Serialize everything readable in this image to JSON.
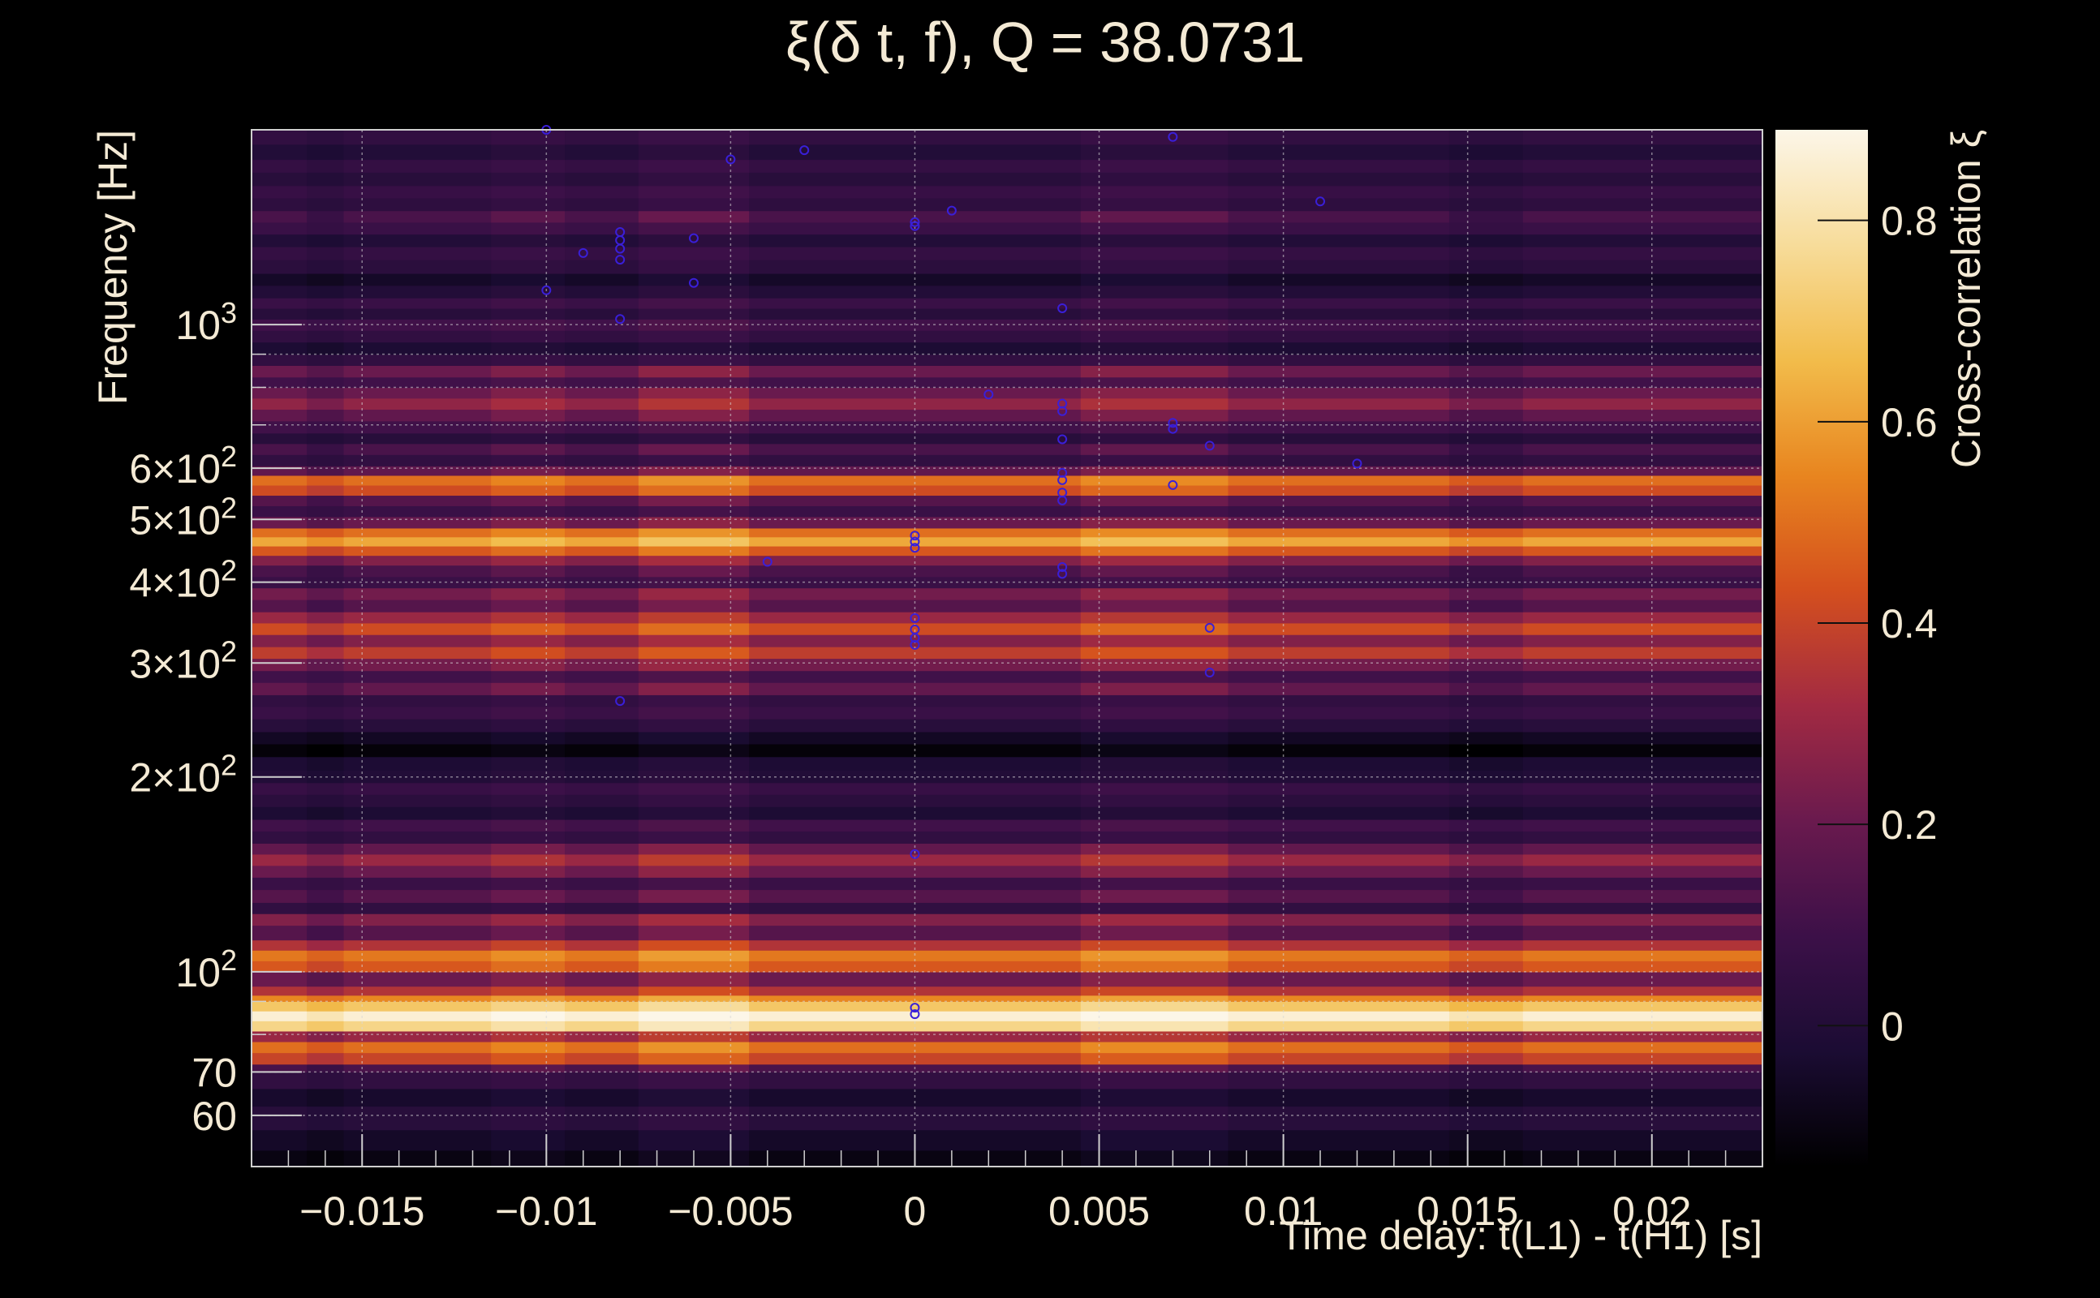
{
  "chart_data": {
    "type": "heatmap",
    "title": "ξ(δ t, f), Q = 38.0731",
    "xlabel": "Time delay: t(L1) - t(H1) [s]",
    "ylabel": "Frequency [Hz]",
    "colorbar_label": "Cross-correlation ξ",
    "xlim": [
      -0.018,
      0.023
    ],
    "ylim": [
      50,
      2000
    ],
    "y_scale": "log",
    "zlim": [
      -0.14,
      0.89
    ],
    "grid": true,
    "colormap": [
      "#000000",
      "#1b0c33",
      "#3c1048",
      "#6a1a4e",
      "#a22a42",
      "#d44f1e",
      "#e8851f",
      "#f2bc4b",
      "#f7dc9a",
      "#fcf6e8"
    ],
    "x_ticks": [
      {
        "value": -0.015,
        "label": "−0.015"
      },
      {
        "value": -0.01,
        "label": "−0.01"
      },
      {
        "value": -0.005,
        "label": "−0.005"
      },
      {
        "value": 0,
        "label": "0"
      },
      {
        "value": 0.005,
        "label": "0.005"
      },
      {
        "value": 0.01,
        "label": "0.01"
      },
      {
        "value": 0.015,
        "label": "0.015"
      },
      {
        "value": 0.02,
        "label": "0.02"
      }
    ],
    "y_ticks": [
      {
        "value": 60,
        "label": "60"
      },
      {
        "value": 70,
        "label": "70"
      },
      {
        "value": 100,
        "label": "10",
        "sup": "2"
      },
      {
        "value": 200,
        "label": "2×10",
        "sup": "2"
      },
      {
        "value": 300,
        "label": "3×10",
        "sup": "2"
      },
      {
        "value": 400,
        "label": "4×10",
        "sup": "2"
      },
      {
        "value": 500,
        "label": "5×10",
        "sup": "2"
      },
      {
        "value": 600,
        "label": "6×10",
        "sup": "2"
      },
      {
        "value": 1000,
        "label": "10",
        "sup": "3"
      }
    ],
    "colorbar_ticks": [
      {
        "value": 0,
        "label": "0"
      },
      {
        "value": 0.2,
        "label": "0.2"
      },
      {
        "value": 0.4,
        "label": "0.4"
      },
      {
        "value": 0.6,
        "label": "0.6"
      },
      {
        "value": 0.8,
        "label": "0.8"
      }
    ],
    "bands": [
      {
        "f0": 50,
        "f1": 53,
        "xi": -0.1
      },
      {
        "f0": 53,
        "f1": 57,
        "xi": -0.05
      },
      {
        "f0": 57,
        "f1": 62,
        "xi": 0.02
      },
      {
        "f0": 62,
        "f1": 66,
        "xi": -0.04
      },
      {
        "f0": 66,
        "f1": 70,
        "xi": 0.05
      },
      {
        "f0": 70,
        "f1": 72,
        "xi": 0.12
      },
      {
        "f0": 72,
        "f1": 75,
        "xi": 0.4
      },
      {
        "f0": 75,
        "f1": 78,
        "xi": 0.5
      },
      {
        "f0": 78,
        "f1": 81,
        "xi": 0.3
      },
      {
        "f0": 81,
        "f1": 84,
        "xi": 0.75
      },
      {
        "f0": 84,
        "f1": 87,
        "xi": 0.86
      },
      {
        "f0": 87,
        "f1": 90,
        "xi": 0.7
      },
      {
        "f0": 90,
        "f1": 92,
        "xi": 0.55
      },
      {
        "f0": 92,
        "f1": 95,
        "xi": 0.35
      },
      {
        "f0": 95,
        "f1": 100,
        "xi": 0.2
      },
      {
        "f0": 100,
        "f1": 104,
        "xi": 0.45
      },
      {
        "f0": 104,
        "f1": 108,
        "xi": 0.52
      },
      {
        "f0": 108,
        "f1": 112,
        "xi": 0.35
      },
      {
        "f0": 112,
        "f1": 118,
        "xi": 0.15
      },
      {
        "f0": 118,
        "f1": 123,
        "xi": 0.25
      },
      {
        "f0": 123,
        "f1": 128,
        "xi": 0.05
      },
      {
        "f0": 128,
        "f1": 134,
        "xi": 0.15
      },
      {
        "f0": 134,
        "f1": 140,
        "xi": 0.08
      },
      {
        "f0": 140,
        "f1": 146,
        "xi": 0.2
      },
      {
        "f0": 146,
        "f1": 152,
        "xi": 0.3
      },
      {
        "f0": 152,
        "f1": 158,
        "xi": 0.18
      },
      {
        "f0": 158,
        "f1": 165,
        "xi": 0.05
      },
      {
        "f0": 165,
        "f1": 172,
        "xi": 0.1
      },
      {
        "f0": 172,
        "f1": 180,
        "xi": -0.02
      },
      {
        "f0": 180,
        "f1": 188,
        "xi": 0.03
      },
      {
        "f0": 188,
        "f1": 196,
        "xi": 0.07
      },
      {
        "f0": 196,
        "f1": 205,
        "xi": 0.0
      },
      {
        "f0": 205,
        "f1": 215,
        "xi": -0.02
      },
      {
        "f0": 215,
        "f1": 225,
        "xi": -0.12
      },
      {
        "f0": 225,
        "f1": 235,
        "xi": -0.06
      },
      {
        "f0": 235,
        "f1": 246,
        "xi": 0.02
      },
      {
        "f0": 246,
        "f1": 257,
        "xi": 0.08
      },
      {
        "f0": 257,
        "f1": 268,
        "xi": 0.05
      },
      {
        "f0": 268,
        "f1": 280,
        "xi": 0.18
      },
      {
        "f0": 280,
        "f1": 292,
        "xi": 0.1
      },
      {
        "f0": 292,
        "f1": 305,
        "xi": 0.22
      },
      {
        "f0": 305,
        "f1": 318,
        "xi": 0.38
      },
      {
        "f0": 318,
        "f1": 332,
        "xi": 0.25
      },
      {
        "f0": 332,
        "f1": 346,
        "xi": 0.42
      },
      {
        "f0": 346,
        "f1": 360,
        "xi": 0.3
      },
      {
        "f0": 360,
        "f1": 376,
        "xi": 0.15
      },
      {
        "f0": 376,
        "f1": 392,
        "xi": 0.22
      },
      {
        "f0": 392,
        "f1": 408,
        "xi": 0.08
      },
      {
        "f0": 408,
        "f1": 425,
        "xi": 0.12
      },
      {
        "f0": 425,
        "f1": 440,
        "xi": 0.25
      },
      {
        "f0": 440,
        "f1": 455,
        "xi": 0.45
      },
      {
        "f0": 455,
        "f1": 470,
        "xi": 0.62
      },
      {
        "f0": 470,
        "f1": 485,
        "xi": 0.5
      },
      {
        "f0": 485,
        "f1": 505,
        "xi": 0.2
      },
      {
        "f0": 505,
        "f1": 525,
        "xi": 0.08
      },
      {
        "f0": 525,
        "f1": 545,
        "xi": 0.15
      },
      {
        "f0": 545,
        "f1": 565,
        "xi": 0.42
      },
      {
        "f0": 565,
        "f1": 585,
        "xi": 0.5
      },
      {
        "f0": 585,
        "f1": 605,
        "xi": 0.18
      },
      {
        "f0": 605,
        "f1": 630,
        "xi": 0.05
      },
      {
        "f0": 630,
        "f1": 655,
        "xi": 0.12
      },
      {
        "f0": 655,
        "f1": 680,
        "xi": 0.02
      },
      {
        "f0": 680,
        "f1": 710,
        "xi": 0.1
      },
      {
        "f0": 710,
        "f1": 740,
        "xi": 0.18
      },
      {
        "f0": 740,
        "f1": 770,
        "xi": 0.28
      },
      {
        "f0": 770,
        "f1": 800,
        "xi": 0.2
      },
      {
        "f0": 800,
        "f1": 830,
        "xi": 0.1
      },
      {
        "f0": 830,
        "f1": 865,
        "xi": 0.2
      },
      {
        "f0": 865,
        "f1": 900,
        "xi": 0.05
      },
      {
        "f0": 900,
        "f1": 940,
        "xi": -0.02
      },
      {
        "f0": 940,
        "f1": 980,
        "xi": 0.05
      },
      {
        "f0": 980,
        "f1": 1020,
        "xi": 0.1
      },
      {
        "f0": 1020,
        "f1": 1060,
        "xi": 0.02
      },
      {
        "f0": 1060,
        "f1": 1100,
        "xi": 0.08
      },
      {
        "f0": 1100,
        "f1": 1150,
        "xi": 0.0
      },
      {
        "f0": 1150,
        "f1": 1200,
        "xi": -0.05
      },
      {
        "f0": 1200,
        "f1": 1260,
        "xi": 0.03
      },
      {
        "f0": 1260,
        "f1": 1320,
        "xi": 0.06
      },
      {
        "f0": 1320,
        "f1": 1380,
        "xi": 0.0
      },
      {
        "f0": 1380,
        "f1": 1440,
        "xi": 0.08
      },
      {
        "f0": 1440,
        "f1": 1500,
        "xi": 0.12
      },
      {
        "f0": 1500,
        "f1": 1570,
        "xi": 0.04
      },
      {
        "f0": 1570,
        "f1": 1640,
        "xi": 0.07
      },
      {
        "f0": 1640,
        "f1": 1720,
        "xi": 0.02
      },
      {
        "f0": 1720,
        "f1": 1800,
        "xi": 0.06
      },
      {
        "f0": 1800,
        "f1": 1900,
        "xi": 0.0
      },
      {
        "f0": 1900,
        "f1": 2000,
        "xi": 0.05
      }
    ],
    "band_modulation": [
      {
        "x0": -0.0165,
        "x1": -0.0155,
        "dxi": -0.03
      },
      {
        "x0": -0.0115,
        "x1": -0.0095,
        "dxi": 0.03
      },
      {
        "x0": -0.0075,
        "x1": -0.0045,
        "dxi": 0.05
      },
      {
        "x0": 0.0045,
        "x1": 0.0085,
        "dxi": 0.04
      },
      {
        "x0": 0.0145,
        "x1": 0.0165,
        "dxi": -0.03
      }
    ],
    "markers": [
      {
        "x": 0,
        "f": 88
      },
      {
        "x": 0,
        "f": 86
      },
      {
        "x": 0,
        "f": 152
      },
      {
        "x": 0,
        "f": 320
      },
      {
        "x": 0,
        "f": 328
      },
      {
        "x": 0,
        "f": 338
      },
      {
        "x": 0,
        "f": 352
      },
      {
        "x": 0,
        "f": 452
      },
      {
        "x": 0,
        "f": 462
      },
      {
        "x": 0,
        "f": 472
      },
      {
        "x": 0,
        "f": 1420
      },
      {
        "x": 0,
        "f": 1440
      },
      {
        "x": 0.004,
        "f": 412
      },
      {
        "x": 0.004,
        "f": 422
      },
      {
        "x": 0.004,
        "f": 535
      },
      {
        "x": 0.004,
        "f": 550
      },
      {
        "x": 0.004,
        "f": 575
      },
      {
        "x": 0.004,
        "f": 590
      },
      {
        "x": 0.004,
        "f": 665
      },
      {
        "x": 0.004,
        "f": 735
      },
      {
        "x": 0.004,
        "f": 755
      },
      {
        "x": 0.004,
        "f": 1060
      },
      {
        "x": 0.007,
        "f": 565
      },
      {
        "x": 0.007,
        "f": 690
      },
      {
        "x": 0.007,
        "f": 705
      },
      {
        "x": 0.007,
        "f": 1950
      },
      {
        "x": 0.008,
        "f": 340
      },
      {
        "x": 0.008,
        "f": 290
      },
      {
        "x": 0.008,
        "f": 650
      },
      {
        "x": 0.002,
        "f": 780
      },
      {
        "x": 0.001,
        "f": 1500
      },
      {
        "x": 0.011,
        "f": 1550
      },
      {
        "x": 0.012,
        "f": 610
      },
      {
        "x": -0.004,
        "f": 430
      },
      {
        "x": -0.008,
        "f": 1020
      },
      {
        "x": -0.008,
        "f": 1260
      },
      {
        "x": -0.008,
        "f": 1310
      },
      {
        "x": -0.008,
        "f": 1350
      },
      {
        "x": -0.008,
        "f": 1390
      },
      {
        "x": -0.009,
        "f": 1290
      },
      {
        "x": -0.006,
        "f": 1160
      },
      {
        "x": -0.006,
        "f": 1360
      },
      {
        "x": -0.01,
        "f": 1130
      },
      {
        "x": -0.008,
        "f": 262
      },
      {
        "x": -0.005,
        "f": 1800
      },
      {
        "x": -0.003,
        "f": 1860
      },
      {
        "x": -0.01,
        "f": 2000
      }
    ]
  }
}
